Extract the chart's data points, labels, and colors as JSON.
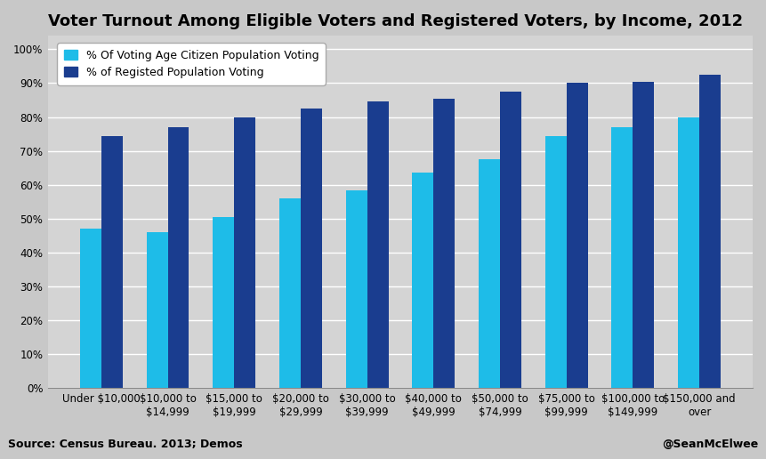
{
  "title": "Voter Turnout Among Eligible Voters and Registered Voters, by Income, 2012",
  "categories": [
    "Under $10,000",
    "$10,000 to\n$14,999",
    "$15,000 to\n$19,999",
    "$20,000 to\n$29,999",
    "$30,000 to\n$39,999",
    "$40,000 to\n$49,999",
    "$50,000 to\n$74,999",
    "$75,000 to\n$99,999",
    "$100,000 to\n$149,999",
    "$150,000 and\nover"
  ],
  "eligible_voters": [
    0.47,
    0.46,
    0.505,
    0.56,
    0.585,
    0.635,
    0.675,
    0.745,
    0.77,
    0.8
  ],
  "registered_voters": [
    0.745,
    0.77,
    0.8,
    0.825,
    0.845,
    0.855,
    0.875,
    0.9,
    0.905,
    0.925
  ],
  "color_eligible": "#1EBCE8",
  "color_registered": "#1A3D8F",
  "legend_labels": [
    "% Of Voting Age Citizen Population Voting",
    "% of Registed Population Voting"
  ],
  "ylabel_ticks": [
    0.0,
    0.1,
    0.2,
    0.3,
    0.4,
    0.5,
    0.6,
    0.7,
    0.8,
    0.9,
    1.0
  ],
  "source_text": "Source: Census Bureau. 2013; Demos",
  "credit_text": "@SeanMcElwee",
  "outer_bg": "#C8C8C8",
  "plot_bg": "#D4D4D4",
  "title_fontsize": 13,
  "tick_fontsize": 8.5,
  "legend_fontsize": 9,
  "bar_width": 0.32,
  "ylim": [
    0.0,
    1.04
  ],
  "grid_color": "#FFFFFF",
  "grid_linewidth": 1.0
}
